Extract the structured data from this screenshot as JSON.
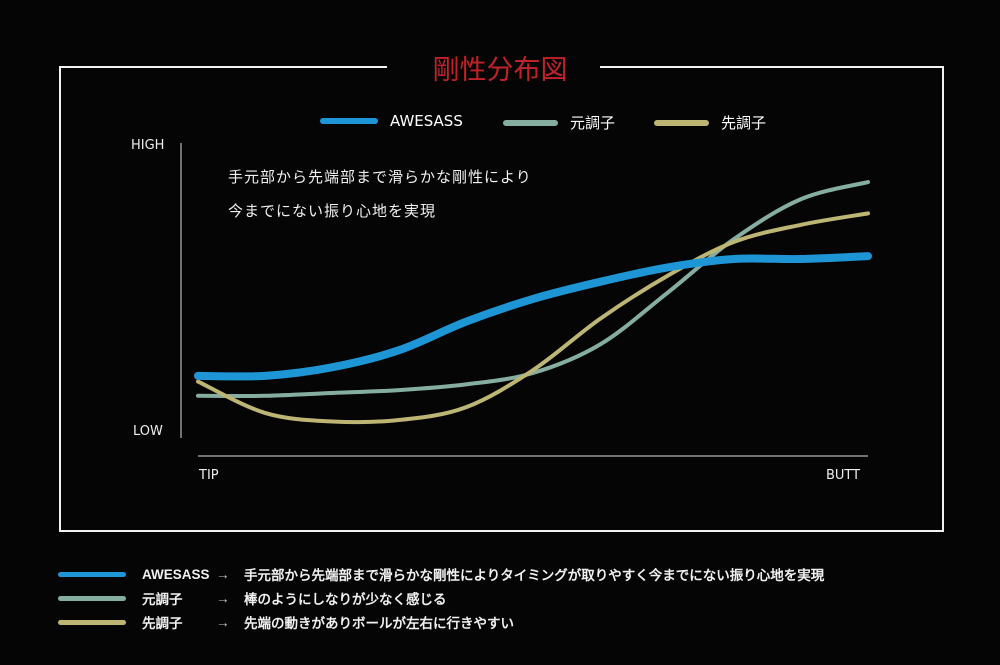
{
  "chart_data": {
    "type": "line",
    "title": "剛性分布図",
    "xlabel": "",
    "ylabel": "",
    "x_tick_labels": [
      "TIP",
      "BUTT"
    ],
    "y_tick_labels": [
      "LOW",
      "HIGH"
    ],
    "x": [
      0,
      1,
      2,
      3,
      4,
      5,
      6,
      7,
      8,
      9,
      10
    ],
    "xlim": [
      0,
      10
    ],
    "ylim": [
      0,
      10
    ],
    "legend_position": "top",
    "annotation": [
      "手元部から先端部まで滑らかな剛性により",
      "今までにない振り心地を実現"
    ],
    "series": [
      {
        "name": "AWESASS",
        "color": "#1e96d6",
        "values": [
          1.9,
          1.9,
          2.2,
          2.8,
          3.8,
          4.6,
          5.2,
          5.7,
          6.0,
          6.0,
          6.1
        ]
      },
      {
        "name": "元調子",
        "color": "#86aea0",
        "values": [
          1.2,
          1.2,
          1.3,
          1.4,
          1.6,
          2.0,
          3.0,
          4.8,
          6.7,
          8.1,
          8.7
        ]
      },
      {
        "name": "先調子",
        "color": "#bdb574",
        "values": [
          1.7,
          0.6,
          0.3,
          0.35,
          0.8,
          2.1,
          3.9,
          5.4,
          6.6,
          7.2,
          7.6
        ]
      }
    ]
  },
  "descriptions": [
    {
      "name": "AWESASS",
      "arrow": "→",
      "text": "手元部から先端部まで滑らかな剛性によりタイミングが取りやすく今までにない振り心地を実現"
    },
    {
      "name": "元調子",
      "arrow": "→",
      "text": "棒のようにしなりが少なく感じる"
    },
    {
      "name": "先調子",
      "arrow": "→",
      "text": "先端の動きがありボールが左右に行きやすい"
    }
  ]
}
